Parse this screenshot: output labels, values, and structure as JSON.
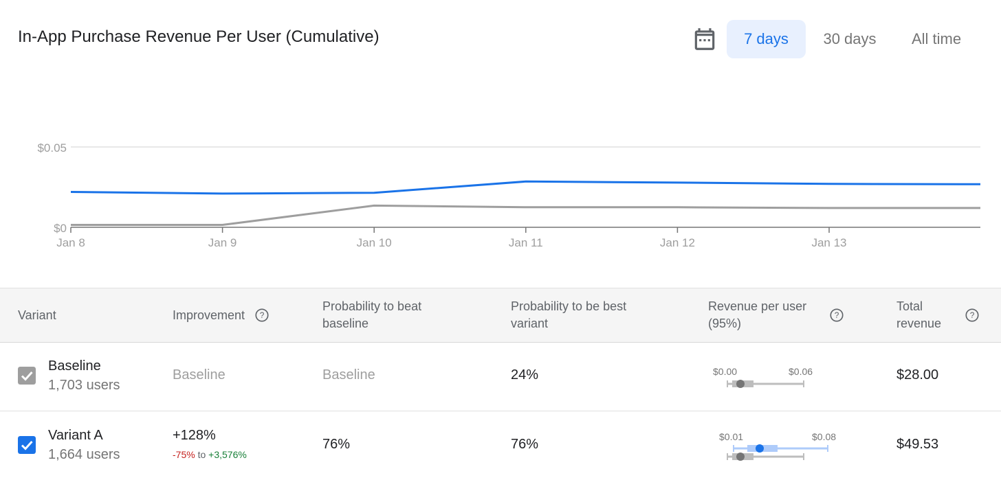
{
  "header": {
    "title": "In-App Purchase Revenue Per User (Cumulative)",
    "ranges": [
      "7 days",
      "30 days",
      "All time"
    ],
    "active_range": "7 days",
    "calendar_icon": "calendar-icon"
  },
  "chart_data": {
    "type": "line",
    "title": "In-App Purchase Revenue Per User (Cumulative)",
    "xlabel": "",
    "ylabel": "",
    "x_ticks": [
      "Jan 8",
      "Jan 9",
      "Jan 10",
      "Jan 11",
      "Jan 12",
      "Jan 13"
    ],
    "y_ticks": [
      "$0",
      "$0.05"
    ],
    "ylim": [
      0,
      0.05
    ],
    "grid": true,
    "series": [
      {
        "color": "#1a73e8",
        "x": [
          "Jan 8",
          "Jan 9",
          "Jan 10",
          "Jan 11",
          "Jan 12",
          "Jan 13",
          "Jan 14"
        ],
        "values": [
          0.022,
          0.021,
          0.0215,
          0.0285,
          0.0278,
          0.027,
          0.0268
        ]
      },
      {
        "color": "#9e9e9e",
        "x": [
          "Jan 8",
          "Jan 9",
          "Jan 10",
          "Jan 11",
          "Jan 12",
          "Jan 13",
          "Jan 14"
        ],
        "values": [
          0.0015,
          0.0015,
          0.0135,
          0.0125,
          0.0125,
          0.012,
          0.012
        ]
      }
    ]
  },
  "table": {
    "headers": {
      "variant": "Variant",
      "improvement": "Improvement",
      "prob_beat_1": "Probability to beat",
      "prob_beat_2": "baseline",
      "prob_best_1": "Probability to be best",
      "prob_best_2": "variant",
      "rpu_1": "Revenue per user",
      "rpu_2": "(95%)",
      "total_1": "Total",
      "total_2": "revenue"
    },
    "rows": [
      {
        "name": "Baseline",
        "users": "1,703 users",
        "checked": true,
        "checkbox_color": "#9e9e9e",
        "improvement": "Baseline",
        "prob_beat": "Baseline",
        "prob_best": "24%",
        "rpu_low": "$0.00",
        "rpu_high": "$0.06",
        "total": "$28.00"
      },
      {
        "name": "Variant A",
        "users": "1,664 users",
        "checked": true,
        "checkbox_color": "#1a73e8",
        "improvement": "+128%",
        "improvement_low": "-75%",
        "improvement_to": "to",
        "improvement_high": "+3,576%",
        "prob_beat": "76%",
        "prob_best": "76%",
        "rpu_low": "$0.01",
        "rpu_high": "$0.08",
        "total": "$49.53"
      }
    ]
  }
}
